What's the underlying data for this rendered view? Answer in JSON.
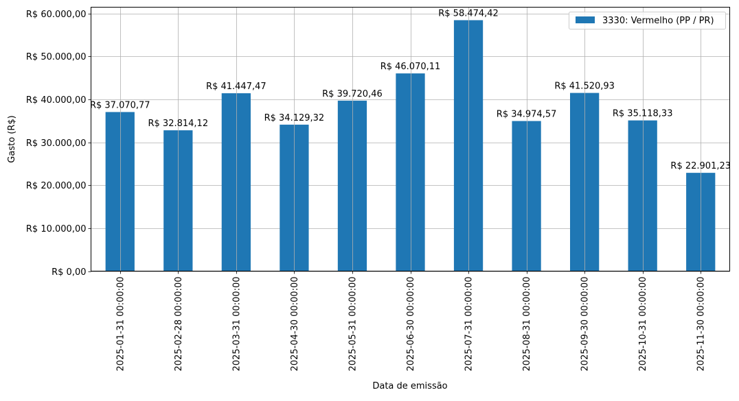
{
  "chart_data": {
    "type": "bar",
    "title": "",
    "xlabel": "Data de emissão",
    "ylabel": "Gasto (R$)",
    "ylim": [
      0,
      60000
    ],
    "grid": true,
    "legend_position": "upper right",
    "categories": [
      "2025-01-31 00:00:00",
      "2025-02-28 00:00:00",
      "2025-03-31 00:00:00",
      "2025-04-30 00:00:00",
      "2025-05-31 00:00:00",
      "2025-06-30 00:00:00",
      "2025-07-31 00:00:00",
      "2025-08-31 00:00:00",
      "2025-09-30 00:00:00",
      "2025-10-31 00:00:00",
      "2025-11-30 00:00:00"
    ],
    "series": [
      {
        "name": "3330: Vermelho (PP / PR)",
        "color": "#1f77b4",
        "values": [
          37070.77,
          32814.12,
          41447.47,
          34129.32,
          39720.46,
          46070.11,
          58474.42,
          34974.57,
          41520.93,
          35118.33,
          22901.23
        ],
        "labels": [
          "R$ 37.070,77",
          "R$ 32.814,12",
          "R$ 41.447,47",
          "R$ 34.129,32",
          "R$ 39.720,46",
          "R$ 46.070,11",
          "R$ 58.474,42",
          "R$ 34.974,57",
          "R$ 41.520,93",
          "R$ 35.118,33",
          "R$ 22.901,23"
        ]
      }
    ],
    "yticks": [
      0,
      10000,
      20000,
      30000,
      40000,
      50000,
      60000
    ],
    "ytick_labels": [
      "R$ 0,00",
      "R$ 10.000,00",
      "R$ 20.000,00",
      "R$ 30.000,00",
      "R$ 40.000,00",
      "R$ 50.000,00",
      "R$ 60.000,00"
    ]
  },
  "legend": {
    "label": "3330: Vermelho (PP / PR)"
  },
  "axes": {
    "xlabel": "Data de emissão",
    "ylabel": "Gasto (R$)"
  }
}
